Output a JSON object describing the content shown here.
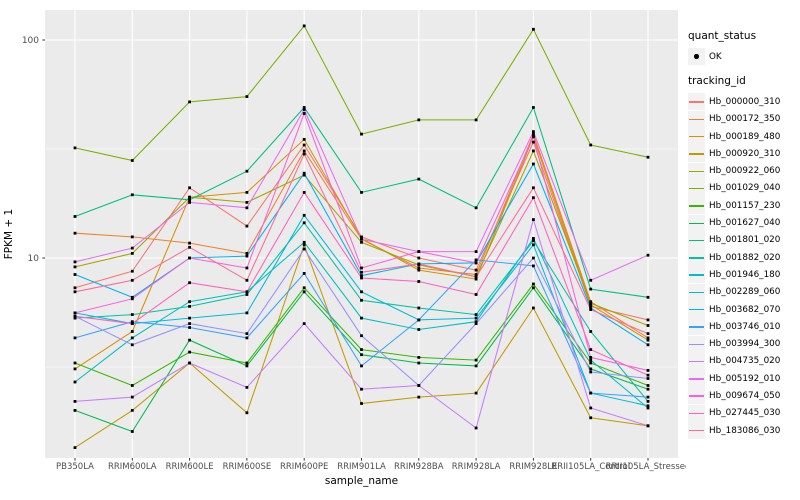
{
  "chart_data": {
    "type": "line",
    "title": "",
    "xlabel": "sample_name",
    "ylabel": "FPKM + 1",
    "y_scale": "log10",
    "y_tick_labels": [
      "100",
      "10"
    ],
    "y_tick_values": [
      100,
      10
    ],
    "y_minor_values": [
      31.62,
      3.162
    ],
    "ylim": [
      1.2,
      137
    ],
    "grid": true,
    "legend_position": "right",
    "categories": [
      "PB350LA",
      "RRIM600LA",
      "RRIM600LE",
      "RRIM600SE",
      "RRIM600PE",
      "RRIM901LA",
      "RRIM928BA",
      "RRIM928LA",
      "RRIM928LE",
      "RRII105LA_Control",
      "RRII105LA_Stressed"
    ],
    "series": [
      {
        "name": "Hb_000000_310",
        "color": "#F8766D",
        "values": [
          7.3,
          8.7,
          21.0,
          14.0,
          33.0,
          12.5,
          10.0,
          8.8,
          34.0,
          6.0,
          5.2
        ]
      },
      {
        "name": "Hb_000172_350",
        "color": "#EA8331",
        "values": [
          13.0,
          12.5,
          11.7,
          10.5,
          31.0,
          12.2,
          9.0,
          8.4,
          37.0,
          6.3,
          4.3
        ]
      },
      {
        "name": "Hb_000189_480",
        "color": "#D89000",
        "values": [
          3.1,
          4.6,
          19.0,
          20.0,
          35.0,
          12.3,
          8.8,
          8.0,
          36.0,
          6.1,
          4.2
        ]
      },
      {
        "name": "Hb_000920_310",
        "color": "#C09B00",
        "values": [
          1.35,
          2.0,
          3.3,
          1.95,
          11.5,
          2.15,
          2.3,
          2.4,
          5.9,
          1.85,
          1.7
        ]
      },
      {
        "name": "Hb_000922_060",
        "color": "#A3A500",
        "values": [
          9.1,
          10.5,
          19.0,
          18.0,
          24.0,
          11.8,
          9.3,
          8.2,
          31.0,
          6.2,
          4.9
        ]
      },
      {
        "name": "Hb_001029_040",
        "color": "#7CAE00",
        "values": [
          32.0,
          28.0,
          52.0,
          55.0,
          116.0,
          37.0,
          43.0,
          43.0,
          112.0,
          33.0,
          29.0
        ]
      },
      {
        "name": "Hb_001157_230",
        "color": "#39B600",
        "values": [
          3.3,
          2.6,
          3.7,
          3.3,
          7.3,
          3.8,
          3.5,
          3.4,
          7.6,
          3.3,
          2.6
        ]
      },
      {
        "name": "Hb_001627_040",
        "color": "#00BB4E",
        "values": [
          2.0,
          1.6,
          4.2,
          3.2,
          7.0,
          3.6,
          3.3,
          3.2,
          7.3,
          3.1,
          2.5
        ]
      },
      {
        "name": "Hb_001801_020",
        "color": "#00BF7D",
        "values": [
          15.5,
          19.5,
          18.5,
          25.0,
          49.0,
          20.0,
          23.0,
          17.0,
          49.0,
          7.2,
          6.6
        ]
      },
      {
        "name": "Hb_001882_020",
        "color": "#00C1A3",
        "values": [
          5.3,
          5.5,
          6.0,
          6.8,
          14.5,
          6.4,
          5.9,
          5.5,
          12.0,
          4.6,
          2.2
        ]
      },
      {
        "name": "Hb_001946_180",
        "color": "#00BFC4",
        "values": [
          2.7,
          4.3,
          6.3,
          7.0,
          11.8,
          5.3,
          4.7,
          5.1,
          12.3,
          3.4,
          2.05
        ]
      },
      {
        "name": "Hb_002289_060",
        "color": "#00BAE0",
        "values": [
          5.6,
          5.0,
          5.3,
          5.6,
          15.7,
          7.0,
          5.2,
          5.3,
          11.5,
          2.4,
          2.1
        ]
      },
      {
        "name": "Hb_003682_070",
        "color": "#00B0F6",
        "values": [
          8.4,
          6.6,
          10.0,
          10.2,
          24.5,
          8.3,
          9.4,
          9.5,
          27.0,
          5.9,
          4.0
        ]
      },
      {
        "name": "Hb_003746_010",
        "color": "#35A2FF",
        "values": [
          4.3,
          5.1,
          4.8,
          4.3,
          8.5,
          3.2,
          5.2,
          9.8,
          9.2,
          2.4,
          2.3
        ]
      },
      {
        "name": "Hb_003994_300",
        "color": "#9590FF",
        "values": [
          5.4,
          4.0,
          5.0,
          4.5,
          11.0,
          4.4,
          2.6,
          5.0,
          10.0,
          3.0,
          2.8
        ]
      },
      {
        "name": "Hb_004735_020",
        "color": "#C77CFF",
        "values": [
          2.2,
          2.3,
          3.3,
          2.55,
          5.0,
          2.5,
          2.6,
          1.66,
          15.0,
          2.05,
          1.7
        ]
      },
      {
        "name": "Hb_005192_010",
        "color": "#E76BF3",
        "values": [
          9.6,
          11.1,
          18.0,
          17.0,
          48.0,
          12.2,
          10.7,
          10.7,
          38.0,
          7.9,
          10.3
        ]
      },
      {
        "name": "Hb_009674_050",
        "color": "#FA62DB",
        "values": [
          5.6,
          6.5,
          10.0,
          9.0,
          46.0,
          9.0,
          10.7,
          9.5,
          36.0,
          3.5,
          3.05
        ]
      },
      {
        "name": "Hb_027445_030",
        "color": "#FF62BC",
        "values": [
          5.4,
          5.0,
          7.7,
          7.0,
          20.0,
          8.1,
          7.8,
          6.8,
          18.9,
          3.8,
          2.9
        ]
      },
      {
        "name": "Hb_183086_030",
        "color": "#FF6A98",
        "values": [
          7.0,
          7.9,
          11.2,
          7.9,
          30.0,
          8.6,
          9.4,
          8.2,
          21.0,
          5.8,
          4.5
        ]
      }
    ]
  },
  "legend": {
    "quant_status_title": "quant_status",
    "quant_status_items": [
      {
        "label": "OK",
        "marker": "black-point"
      }
    ],
    "tracking_id_title": "tracking_id"
  },
  "colors": {
    "panel_bg": "#EBEBEB",
    "grid_major": "#FFFFFF",
    "grid_minor": "#FFFFFF",
    "axis_text": "#4D4D4D",
    "axis_title": "#000000",
    "tick": "#333333",
    "point": "#000000",
    "legend_key_bg": "#F2F2F2"
  }
}
